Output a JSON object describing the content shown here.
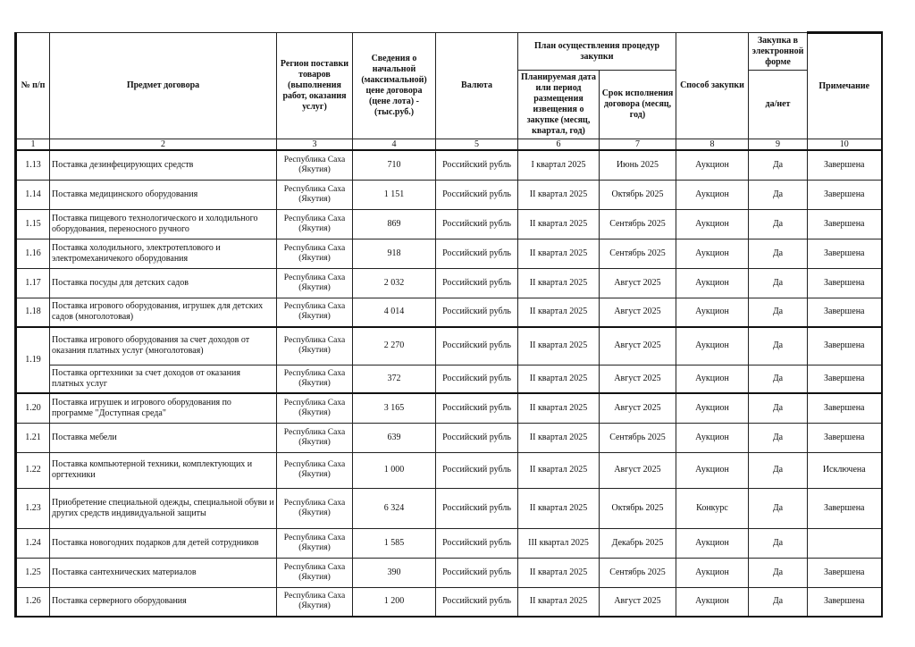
{
  "header": {
    "col1": "№ п/п",
    "col2": "Предмет договора",
    "col3": "Регион поставки товаров (выполнения работ, оказания услуг)",
    "col4": "Сведения о начальной (максимальной) цене договора (цене лота) - (тыс.руб.)",
    "col5": "Валюта",
    "plan_group": "План осуществления процедур закупки",
    "col6": "Планируемая дата или период размещения извещения о закупке (месяц, квартал, год)",
    "col7": "Срок исполнения договора (месяц, год)",
    "col8": "Способ закупки",
    "electronic_group": "Закупка в электронной форме",
    "col9": "да/нет",
    "col10": "Примечание"
  },
  "column_numbers": [
    "1",
    "2",
    "3",
    "4",
    "5",
    "6",
    "7",
    "8",
    "9",
    "10"
  ],
  "rows": [
    {
      "num": "1.13",
      "items": [
        {
          "subject": "Поставка дезинфецирующих средств",
          "region": "Республика Саха (Якутия)",
          "price": "710",
          "currency": "Российский рубль",
          "period": "I квартал 2025",
          "term": "Июнь 2025",
          "method": "Аукцион",
          "electronic": "Да",
          "note": "Завершена"
        }
      ]
    },
    {
      "num": "1.14",
      "items": [
        {
          "subject": "Поставка медицинского оборудования",
          "region": "Республика Саха (Якутия)",
          "price": "1 151",
          "currency": "Российский рубль",
          "period": "II квартал 2025",
          "term": "Октябрь 2025",
          "method": "Аукцион",
          "electronic": "Да",
          "note": "Завершена"
        }
      ]
    },
    {
      "num": "1.15",
      "items": [
        {
          "subject": "Поставка пищевого технологического и холодильного оборудования, переносного ручного",
          "region": "Республика Саха (Якутия)",
          "price": "869",
          "currency": "Российский рубль",
          "period": "II квартал 2025",
          "term": "Сентябрь 2025",
          "method": "Аукцион",
          "electronic": "Да",
          "note": "Завершена"
        }
      ]
    },
    {
      "num": "1.16",
      "items": [
        {
          "subject": "Поставка холодильного, электротеплового и электромеханичекого оборудования",
          "region": "Республика Саха (Якутия)",
          "price": "918",
          "currency": "Российский рубль",
          "period": "II квартал 2025",
          "term": "Сентябрь 2025",
          "method": "Аукцион",
          "electronic": "Да",
          "note": "Завершена"
        }
      ]
    },
    {
      "num": "1.17",
      "items": [
        {
          "subject": "Поставка посуды для детских садов",
          "region": "Республика Саха (Якутия)",
          "price": "2 032",
          "currency": "Российский рубль",
          "period": "II квартал 2025",
          "term": "Август 2025",
          "method": "Аукцион",
          "electronic": "Да",
          "note": "Завершена"
        }
      ]
    },
    {
      "num": "1.18",
      "items": [
        {
          "subject": "Поставка игрового оборудования, игрушек для детских садов (многолотовая)",
          "region": "Республика Саха (Якутия)",
          "price": "4 014",
          "currency": "Российский рубль",
          "period": "II квартал 2025",
          "term": "Август 2025",
          "method": "Аукцион",
          "electronic": "Да",
          "note": "Завершена"
        }
      ]
    },
    {
      "num": "1.19",
      "items": [
        {
          "subject": "Поставка игрового оборудования за счет доходов от оказания платных услуг (многолотовая)",
          "region": "Республика Саха (Якутия)",
          "price": "2 270",
          "currency": "Российский рубль",
          "period": "II квартал 2025",
          "term": "Август 2025",
          "method": "Аукцион",
          "electronic": "Да",
          "note": "Завершена"
        },
        {
          "subject": "Поставка оргтехники за счет доходов от оказания платных услуг",
          "region": "Республика Саха (Якутия)",
          "price": "372",
          "currency": "Российский рубль",
          "period": "II квартал 2025",
          "term": "Август 2025",
          "method": "Аукцион",
          "electronic": "Да",
          "note": "Завершена"
        }
      ]
    },
    {
      "num": "1.20",
      "items": [
        {
          "subject": "Поставка игрушек и игрового оборудования по программе \"Доступная среда\"",
          "region": "Республика Саха (Якутия)",
          "price": "3 165",
          "currency": "Российский рубль",
          "period": "II квартал 2025",
          "term": "Август 2025",
          "method": "Аукцион",
          "electronic": "Да",
          "note": "Завершена"
        }
      ]
    },
    {
      "num": "1.21",
      "items": [
        {
          "subject": "Поставка мебели",
          "region": "Республика Саха (Якутия)",
          "price": "639",
          "currency": "Российский рубль",
          "period": "II квартал 2025",
          "term": "Сентябрь 2025",
          "method": "Аукцион",
          "electronic": "Да",
          "note": "Завершена"
        }
      ]
    },
    {
      "num": "1.22",
      "items": [
        {
          "subject": "Поставка компьютерной техники, комплектующих и оргтехники",
          "region": "Республика Саха (Якутия)",
          "price": "1 000",
          "currency": "Российский рубль",
          "period": "II квартал 2025",
          "term": "Август 2025",
          "method": "Аукцион",
          "electronic": "Да",
          "note": "Исключена"
        }
      ]
    },
    {
      "num": "1.23",
      "items": [
        {
          "subject": "Приобретение специальной одежды, специальной обуви и других средств индивидуальной защиты",
          "region": "Республика Саха (Якутия)",
          "price": "6 324",
          "currency": "Российский рубль",
          "period": "II квартал 2025",
          "term": "Октябрь 2025",
          "method": "Конкурс",
          "electronic": "Да",
          "note": "Завершена"
        }
      ]
    },
    {
      "num": "1.24",
      "items": [
        {
          "subject": "Поставка новогодних подарков для детей сотрудников",
          "region": "Республика Саха (Якутия)",
          "price": "1 585",
          "currency": "Российский рубль",
          "period": "III квартал 2025",
          "term": "Декабрь 2025",
          "method": "Аукцион",
          "electronic": "Да",
          "note": ""
        }
      ]
    },
    {
      "num": "1.25",
      "items": [
        {
          "subject": "Поставка сантехнических материалов",
          "region": "Республика Саха (Якутия)",
          "price": "390",
          "currency": "Российский рубль",
          "period": "II квартал 2025",
          "term": "Сентябрь 2025",
          "method": "Аукцион",
          "electronic": "Да",
          "note": "Завершена"
        }
      ]
    },
    {
      "num": "1.26",
      "items": [
        {
          "subject": "Поставка серверного оборудования",
          "region": "Республика Саха (Якутия)",
          "price": "1 200",
          "currency": "Российский рубль",
          "period": "II квартал 2025",
          "term": "Август 2025",
          "method": "Аукцион",
          "electronic": "Да",
          "note": "Завершена"
        }
      ]
    }
  ]
}
